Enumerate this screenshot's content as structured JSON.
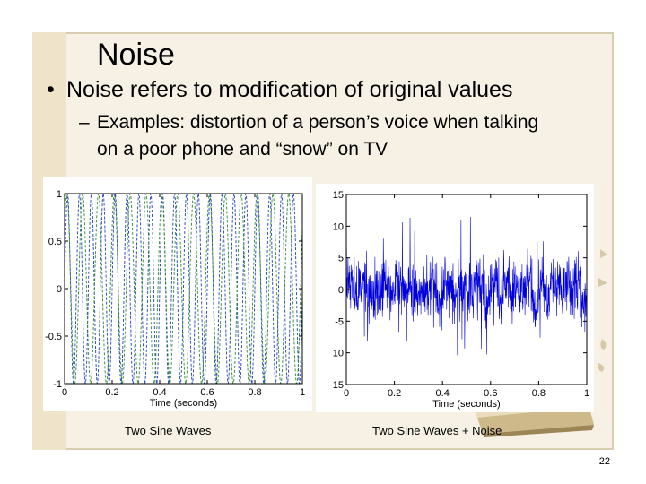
{
  "slide": {
    "title": "Noise",
    "bullet_symbol": "•",
    "bullet": "Noise refers to modification of original values",
    "sub_bullet_symbol": "–",
    "sub_bullet_line1": "Examples: distortion of a person’s voice when talking",
    "sub_bullet_line2": "on a poor phone and “snow” on TV",
    "page_number": "22"
  },
  "captions": {
    "left": "Two Sine Waves",
    "right": "Two Sine Waves + Noise"
  },
  "chart_data": [
    {
      "type": "line",
      "title": "",
      "xlabel": "Time (seconds)",
      "ylabel": "",
      "xlim": [
        0,
        1
      ],
      "ylim": [
        -1,
        1
      ],
      "x_ticks": [
        "0",
        "0.2",
        "0.4",
        "0.6",
        "0.8",
        "1"
      ],
      "y_ticks": [
        "1",
        "0.5",
        "0",
        "-0.5",
        "-1"
      ],
      "series": [
        {
          "color": "#1f3fbf",
          "style": "dashed",
          "frequency_hz": 20,
          "amplitude": 1
        },
        {
          "color": "#2a8a2a",
          "style": "dashed",
          "frequency_hz": 15,
          "amplitude": 1
        }
      ]
    },
    {
      "type": "line",
      "title": "",
      "xlabel": "Time (seconds)",
      "ylabel": "",
      "xlim": [
        0,
        1
      ],
      "ylim": [
        -15,
        15
      ],
      "x_ticks": [
        "0",
        "0.2",
        "0.4",
        "0.6",
        "0.8",
        "1"
      ],
      "y_ticks": [
        "15",
        "10",
        "5",
        "0",
        "-5",
        "10",
        "15"
      ],
      "series": [
        {
          "color": "#0000dd",
          "style": "solid",
          "signal": "two sine waves plus noise"
        }
      ]
    }
  ]
}
